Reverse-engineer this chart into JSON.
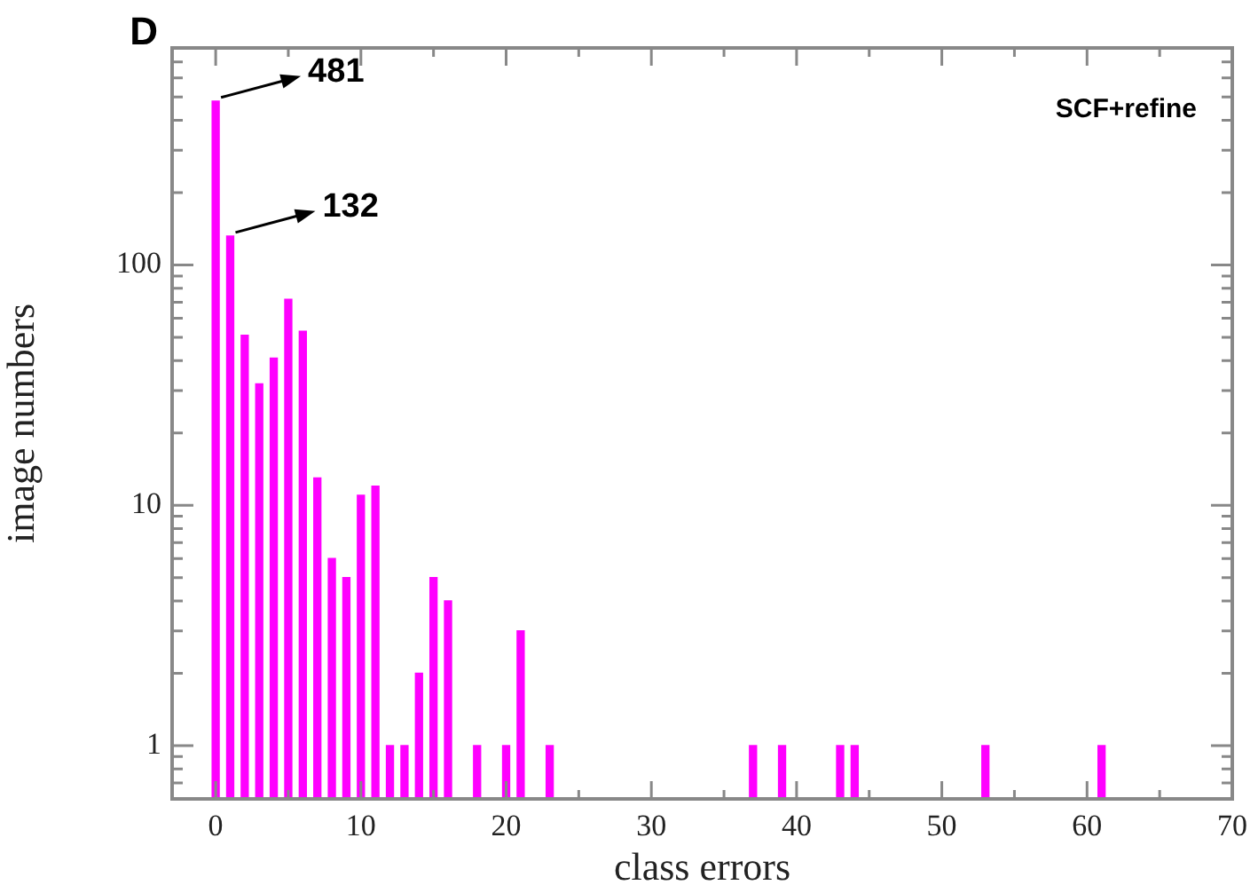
{
  "chart_data": {
    "type": "bar",
    "xlabel": "class errors",
    "ylabel": "image numbers",
    "x": [
      0,
      1,
      2,
      3,
      4,
      5,
      6,
      7,
      8,
      9,
      10,
      11,
      12,
      13,
      14,
      15,
      16,
      18,
      20,
      21,
      23,
      37,
      39,
      43,
      44,
      53,
      61
    ],
    "values": [
      481,
      132,
      51,
      32,
      41,
      72,
      53,
      13,
      6,
      5,
      11,
      12,
      1,
      1,
      2,
      5,
      4,
      1,
      1,
      3,
      1,
      1,
      1,
      1,
      1,
      1,
      1
    ],
    "color": "#ff00ff",
    "log": "y",
    "grid": false,
    "legend": false,
    "xlim": [
      -3,
      70
    ],
    "ylim": [
      0.6,
      800
    ],
    "xticks": [
      0,
      {
        "value": 5,
        "label": null
      },
      10,
      {
        "value": 15,
        "label": null
      },
      20,
      {
        "value": 25,
        "label": null
      },
      30,
      {
        "value": 35,
        "label": null
      },
      40,
      {
        "value": 45,
        "label": null
      },
      50,
      {
        "value": 55,
        "label": null
      },
      60,
      {
        "value": 65,
        "label": null
      },
      70
    ],
    "yticks": [
      {
        "value": 0.7,
        "label": null
      },
      {
        "value": 0.8,
        "label": null
      },
      {
        "value": 0.9,
        "label": null
      },
      1,
      {
        "value": 2,
        "label": null
      },
      {
        "value": 3,
        "label": null
      },
      {
        "value": 4,
        "label": null
      },
      {
        "value": 5,
        "label": null
      },
      {
        "value": 6,
        "label": null
      },
      {
        "value": 7,
        "label": null
      },
      {
        "value": 8,
        "label": null
      },
      {
        "value": 9,
        "label": null
      },
      10,
      {
        "value": 20,
        "label": null
      },
      {
        "value": 30,
        "label": null
      },
      {
        "value": 40,
        "label": null
      },
      {
        "value": 50,
        "label": null
      },
      {
        "value": 60,
        "label": null
      },
      {
        "value": 70,
        "label": null
      },
      {
        "value": 80,
        "label": null
      },
      {
        "value": 90,
        "label": null
      },
      100,
      {
        "value": 200,
        "label": null
      },
      {
        "value": 300,
        "label": null
      },
      {
        "value": 400,
        "label": null
      },
      {
        "value": 500,
        "label": null
      },
      {
        "value": 600,
        "label": null
      },
      {
        "value": 700,
        "label": null
      },
      {
        "value": 800,
        "label": null
      }
    ],
    "annotations": [
      "D",
      "SCF+refine",
      {
        "text": "481",
        "x": 0,
        "y": 481
      },
      {
        "text": "132",
        "x": 1,
        "y": 132
      }
    ]
  }
}
